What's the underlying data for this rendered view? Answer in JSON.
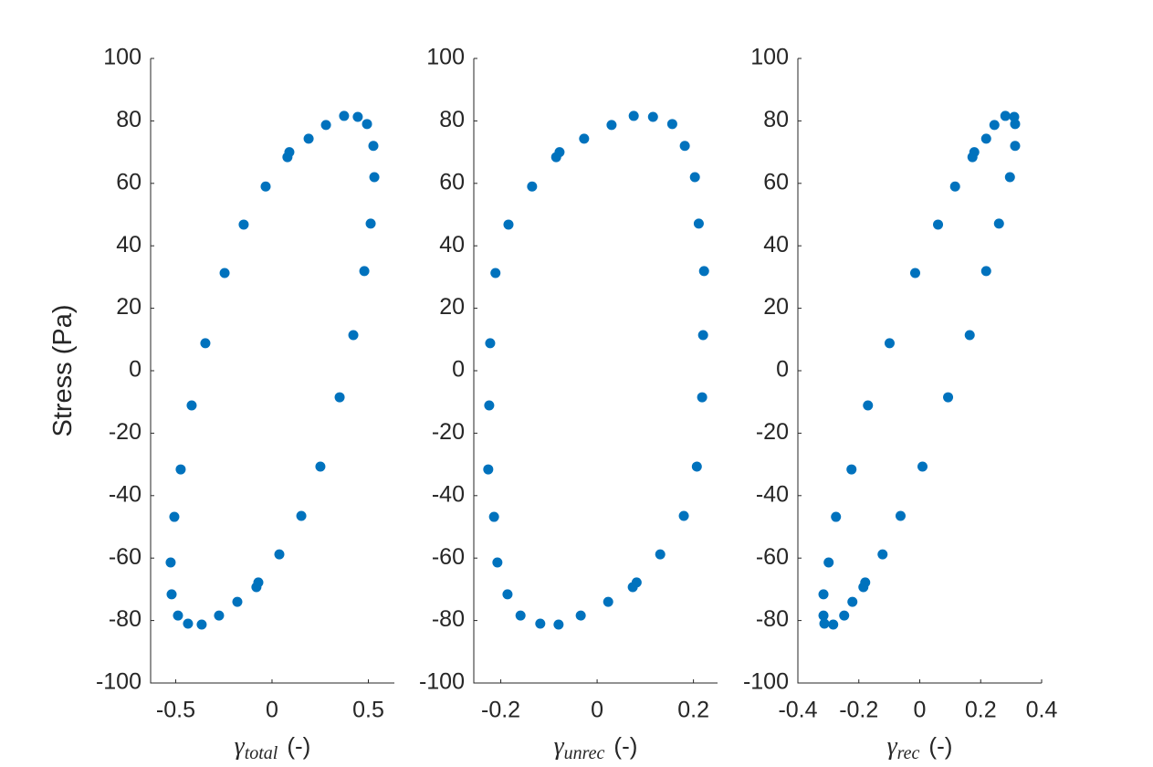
{
  "chart_data": [
    {
      "type": "scatter",
      "ylabel": "Stress (Pa)",
      "xlabel": {
        "symbol": "γ",
        "subscript": "total",
        "unit": "(-)"
      },
      "color": "#0072BD",
      "xlim": [
        -0.63,
        0.635
      ],
      "xticks": [
        -0.5,
        0,
        0.5
      ],
      "ylim": [
        -100,
        100
      ],
      "yticks": [
        -100,
        -80,
        -60,
        -40,
        -20,
        0,
        20,
        40,
        60,
        80,
        100
      ],
      "x": [
        0.531,
        0.526,
        0.493,
        0.445,
        0.374,
        0.28,
        0.19,
        0.09,
        0.08,
        -0.033,
        -0.147,
        -0.246,
        -0.346,
        -0.417,
        -0.474,
        -0.507,
        -0.526,
        -0.521,
        -0.488,
        -0.436,
        -0.365,
        -0.275,
        -0.18,
        -0.081,
        -0.071,
        0.038,
        0.152,
        0.251,
        0.351,
        0.422,
        0.479,
        0.512
      ],
      "values": [
        62,
        72,
        79,
        81.3,
        81.6,
        78.7,
        74.3,
        70,
        68.4,
        59,
        46.8,
        31.3,
        8.8,
        -11.1,
        -31.6,
        -46.8,
        -61.4,
        -71.6,
        -78.4,
        -81,
        -81.3,
        -78.4,
        -74,
        -69.3,
        -67.8,
        -58.8,
        -46.5,
        -30.7,
        -8.5,
        11.4,
        31.9,
        47.1
      ]
    },
    {
      "type": "scatter",
      "xlabel": {
        "symbol": "γ",
        "subscript": "unrec",
        "unit": "(-)"
      },
      "color": "#0072BD",
      "xlim": [
        -0.256,
        0.25
      ],
      "xticks": [
        -0.2,
        0,
        0.2
      ],
      "ylim": [
        -100,
        100
      ],
      "yticks": [
        -100,
        -80,
        -60,
        -40,
        -20,
        0,
        20,
        40,
        60,
        80,
        100
      ],
      "x": [
        0.203,
        0.182,
        0.156,
        0.116,
        0.076,
        0.03,
        -0.027,
        -0.078,
        -0.085,
        -0.135,
        -0.184,
        -0.211,
        -0.222,
        -0.224,
        -0.226,
        -0.214,
        -0.207,
        -0.186,
        -0.159,
        -0.118,
        -0.08,
        -0.034,
        0.023,
        0.074,
        0.082,
        0.131,
        0.18,
        0.207,
        0.218,
        0.22,
        0.222,
        0.211
      ],
      "values": [
        62,
        72,
        79,
        81.3,
        81.6,
        78.7,
        74.3,
        70,
        68.4,
        59,
        46.8,
        31.3,
        8.8,
        -11.1,
        -31.6,
        -46.8,
        -61.4,
        -71.6,
        -78.4,
        -81,
        -81.3,
        -78.4,
        -74,
        -69.3,
        -67.8,
        -58.8,
        -46.5,
        -30.7,
        -8.5,
        11.4,
        31.9,
        47.1
      ]
    },
    {
      "type": "scatter",
      "xlabel": {
        "symbol": "γ",
        "subscript": "rec",
        "unit": "(-)"
      },
      "color": "#0072BD",
      "xlim": [
        -0.4,
        0.4
      ],
      "xticks": [
        -0.4,
        -0.2,
        0,
        0.2,
        0.4
      ],
      "ylim": [
        -100,
        100
      ],
      "yticks": [
        -100,
        -80,
        -60,
        -40,
        -20,
        0,
        20,
        40,
        60,
        80,
        100
      ],
      "x": [
        0.296,
        0.313,
        0.313,
        0.31,
        0.281,
        0.245,
        0.218,
        0.179,
        0.173,
        0.116,
        0.06,
        -0.015,
        -0.099,
        -0.17,
        -0.224,
        -0.275,
        -0.299,
        -0.316,
        -0.316,
        -0.313,
        -0.284,
        -0.248,
        -0.221,
        -0.185,
        -0.179,
        -0.122,
        -0.063,
        0.009,
        0.093,
        0.164,
        0.218,
        0.26
      ],
      "values": [
        62,
        72,
        79,
        81.3,
        81.6,
        78.7,
        74.3,
        70,
        68.4,
        59,
        46.8,
        31.3,
        8.8,
        -11.1,
        -31.6,
        -46.8,
        -61.4,
        -71.6,
        -78.4,
        -81,
        -81.3,
        -78.4,
        -74,
        -69.3,
        -67.8,
        -58.8,
        -46.5,
        -30.7,
        -8.5,
        11.4,
        31.9,
        47.1
      ]
    }
  ]
}
